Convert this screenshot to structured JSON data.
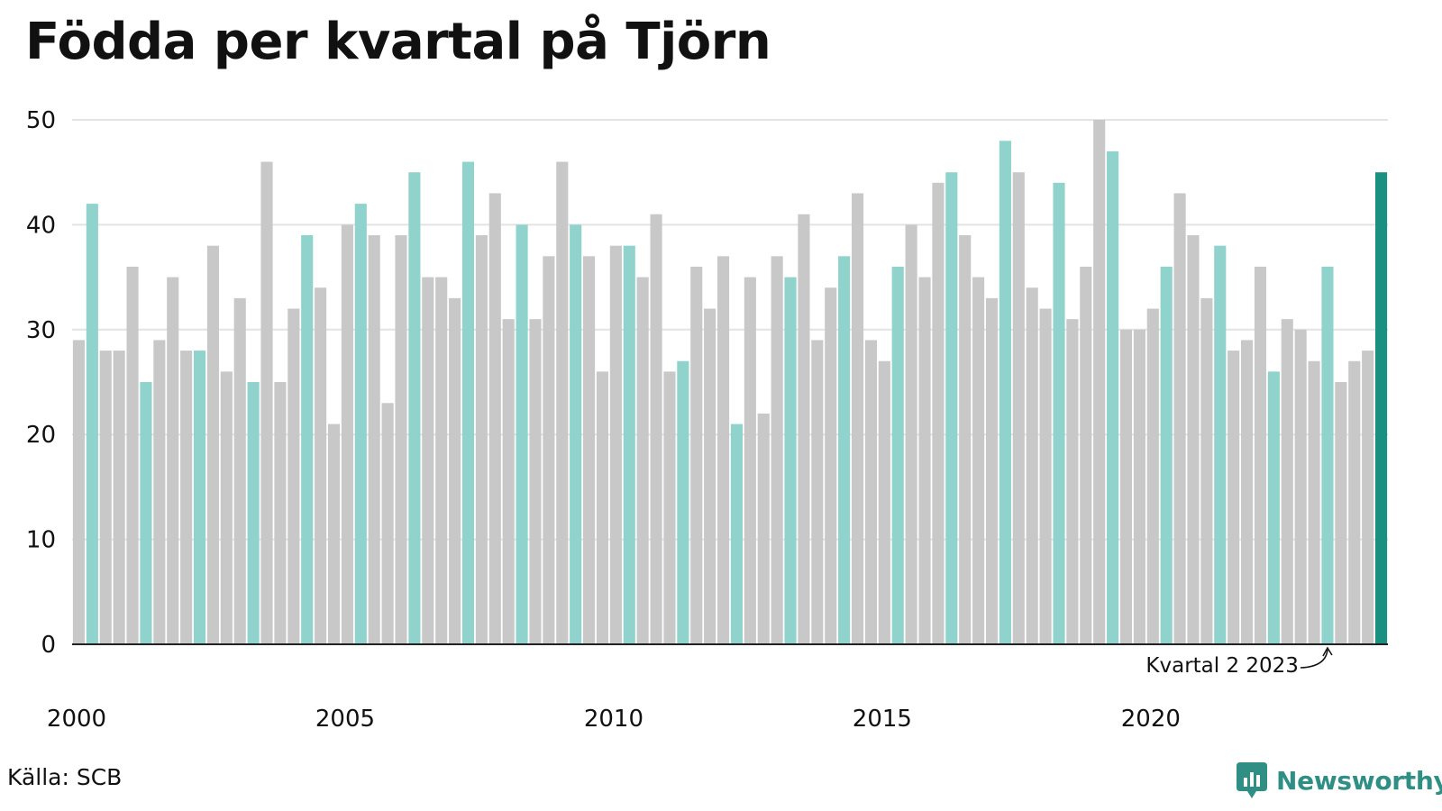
{
  "title": "Födda per kvartal på Tjörn",
  "source": "Källa: SCB",
  "brand": {
    "name": "Newsworthy",
    "icon": "newsworthy-logo-icon"
  },
  "colors": {
    "bar": "#c8c8c8",
    "bar_q2": "#8fd3cc",
    "bar_latest": "#1a9080",
    "grid": "#e3e3e3",
    "axis": "#222222",
    "brand": "#2f8f84"
  },
  "chart_data": {
    "type": "bar",
    "title": "Födda per kvartal på Tjörn",
    "ylim": [
      0,
      50
    ],
    "yticks": [
      0,
      10,
      20,
      30,
      40,
      50
    ],
    "xtick_labels": [
      "2000",
      "2005",
      "2010",
      "2015",
      "2020"
    ],
    "grid": true,
    "annotation": {
      "text": "Kvartal 2 2023",
      "year": 2023,
      "quarter": 2
    },
    "start": {
      "year": 2000,
      "quarter": 1
    },
    "values": [
      29,
      42,
      28,
      28,
      36,
      25,
      29,
      35,
      28,
      28,
      38,
      26,
      33,
      25,
      46,
      25,
      32,
      39,
      34,
      21,
      40,
      42,
      39,
      23,
      39,
      45,
      35,
      35,
      33,
      46,
      39,
      43,
      31,
      40,
      31,
      37,
      46,
      40,
      37,
      26,
      38,
      38,
      35,
      41,
      26,
      27,
      36,
      32,
      37,
      21,
      35,
      22,
      37,
      35,
      41,
      29,
      34,
      37,
      43,
      29,
      27,
      36,
      40,
      35,
      44,
      45,
      39,
      35,
      33,
      48,
      45,
      34,
      32,
      44,
      31,
      36,
      50,
      47,
      30,
      30,
      32,
      36,
      43,
      39,
      33,
      38,
      28,
      29,
      36,
      26,
      31,
      30,
      27,
      36,
      25,
      27,
      28,
      45
    ]
  }
}
